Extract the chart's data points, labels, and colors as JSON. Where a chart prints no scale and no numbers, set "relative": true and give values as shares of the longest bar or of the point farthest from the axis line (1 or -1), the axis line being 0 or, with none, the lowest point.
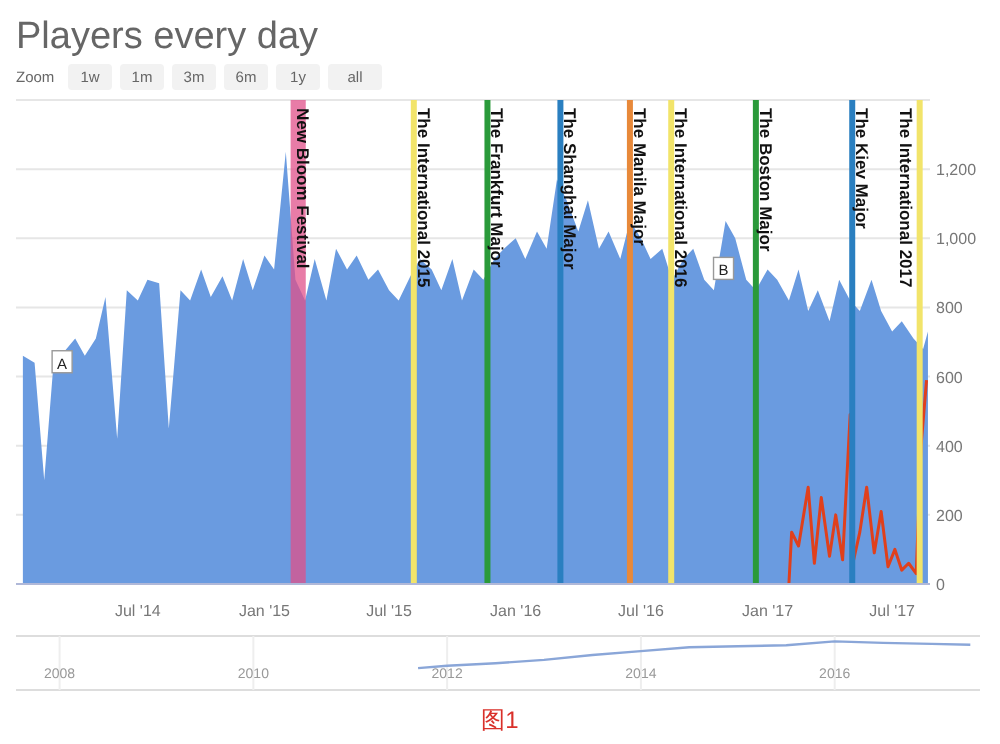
{
  "chart_data": [
    {
      "type": "area",
      "title": "Players every day",
      "annotations": [
        "Zoom",
        "1w",
        "1m",
        "3m",
        "6m",
        "1y",
        "all",
        {
          "text": "A",
          "x": "2014-03-13",
          "y": 640
        },
        {
          "text": "B",
          "x": "2016-10-29",
          "y": 910
        },
        "图1"
      ],
      "x": [
        "2014-01-15",
        "2014-02-01",
        "2014-02-15",
        "2014-03-01",
        "2014-03-15",
        "2014-04-01",
        "2014-04-15",
        "2014-05-01",
        "2014-05-15",
        "2014-06-01",
        "2014-06-15",
        "2014-07-01",
        "2014-07-15",
        "2014-08-01",
        "2014-08-15",
        "2014-09-01",
        "2014-09-15",
        "2014-10-01",
        "2014-10-15",
        "2014-11-01",
        "2014-11-15",
        "2014-12-01",
        "2014-12-15",
        "2015-01-01",
        "2015-01-15",
        "2015-02-01",
        "2015-02-15",
        "2015-03-01",
        "2015-03-15",
        "2015-04-01",
        "2015-04-15",
        "2015-05-01",
        "2015-05-15",
        "2015-06-01",
        "2015-06-15",
        "2015-07-01",
        "2015-07-15",
        "2015-08-01",
        "2015-08-15",
        "2015-09-01",
        "2015-09-15",
        "2015-10-01",
        "2015-10-15",
        "2015-11-01",
        "2015-11-15",
        "2015-12-01",
        "2015-12-15",
        "2016-01-01",
        "2016-01-15",
        "2016-02-01",
        "2016-02-15",
        "2016-03-01",
        "2016-03-15",
        "2016-04-01",
        "2016-04-15",
        "2016-05-01",
        "2016-05-15",
        "2016-06-01",
        "2016-06-15",
        "2016-07-01",
        "2016-07-15",
        "2016-08-01",
        "2016-08-15",
        "2016-09-01",
        "2016-09-15",
        "2016-10-01",
        "2016-10-15",
        "2016-11-01",
        "2016-11-15",
        "2016-12-01",
        "2016-12-15",
        "2017-01-01",
        "2017-01-15",
        "2017-02-01",
        "2017-02-15",
        "2017-03-01",
        "2017-03-15",
        "2017-04-01",
        "2017-04-15",
        "2017-05-01",
        "2017-05-15",
        "2017-06-01",
        "2017-06-15",
        "2017-07-01",
        "2017-07-15",
        "2017-08-01",
        "2017-08-15",
        "2017-08-22"
      ],
      "series": [
        {
          "color": "#6a9be0",
          "values": [
            660,
            640,
            300,
            650,
            670,
            710,
            660,
            710,
            830,
            420,
            850,
            820,
            880,
            870,
            450,
            850,
            820,
            910,
            830,
            890,
            820,
            940,
            850,
            950,
            910,
            1250,
            880,
            820,
            940,
            820,
            970,
            910,
            950,
            880,
            910,
            850,
            820,
            890,
            940,
            910,
            850,
            940,
            820,
            910,
            880,
            940,
            970,
            1000,
            940,
            1020,
            970,
            1170,
            1110,
            1020,
            1110,
            970,
            1020,
            940,
            1050,
            1000,
            940,
            970,
            880,
            940,
            970,
            880,
            850,
            1050,
            1000,
            880,
            850,
            910,
            880,
            820,
            910,
            790,
            850,
            760,
            880,
            820,
            790,
            880,
            790,
            730,
            760,
            710,
            680,
            730
          ]
        },
        {
          "type": "line",
          "color": "#e0401c",
          "x": [
            "2017-02-01",
            "2017-02-05",
            "2017-02-15",
            "2017-03-01",
            "2017-03-10",
            "2017-03-20",
            "2017-04-01",
            "2017-04-10",
            "2017-04-20",
            "2017-05-01",
            "2017-05-05",
            "2017-05-15",
            "2017-05-25",
            "2017-06-05",
            "2017-06-15",
            "2017-06-25",
            "2017-07-05",
            "2017-07-15",
            "2017-07-25",
            "2017-08-05",
            "2017-08-12",
            "2017-08-20"
          ],
          "values": [
            0,
            150,
            110,
            280,
            60,
            250,
            80,
            200,
            70,
            490,
            60,
            150,
            280,
            90,
            210,
            50,
            100,
            40,
            60,
            30,
            400,
            590
          ]
        }
      ],
      "xlim": [
        "2014-01-05",
        "2017-08-25"
      ],
      "xticks": [
        {
          "value": "2014-07-01",
          "label": "Jul '14"
        },
        {
          "value": "2015-01-01",
          "label": "Jan '15"
        },
        {
          "value": "2015-07-01",
          "label": "Jul '15"
        },
        {
          "value": "2016-01-01",
          "label": "Jan '16"
        },
        {
          "value": "2016-07-01",
          "label": "Jul '16"
        },
        {
          "value": "2017-01-01",
          "label": "Jan '17"
        },
        {
          "value": "2017-07-01",
          "label": "Jul '17"
        }
      ],
      "ylim": [
        0,
        1400
      ],
      "yticks": [
        {
          "value": 0,
          "label": "0"
        },
        {
          "value": 200,
          "label": "200"
        },
        {
          "value": 400,
          "label": "400"
        },
        {
          "value": 600,
          "label": "600"
        },
        {
          "value": 800,
          "label": "800"
        },
        {
          "value": 1000,
          "label": "1,000"
        },
        {
          "value": 1200,
          "label": "1,200"
        },
        {
          "value": 1400,
          "label": null
        }
      ],
      "grid": "y",
      "bands": [
        {
          "axis": "x",
          "from": "2015-02-08",
          "to": "2015-03-02",
          "label": "New Bloom Festival",
          "color": "#e0508a"
        }
      ],
      "ref_lines": [
        {
          "axis": "x",
          "value": "2015-08-06",
          "label": "The International 2015",
          "color": "#f2e46a"
        },
        {
          "axis": "x",
          "value": "2015-11-21",
          "label": "The Frankfurt Major",
          "color": "#2a9a3a"
        },
        {
          "axis": "x",
          "value": "2016-03-06",
          "label": "The Shanghai Major",
          "color": "#2a7fc0"
        },
        {
          "axis": "x",
          "value": "2016-06-15",
          "label": "The Manila Major",
          "color": "#e8893a"
        },
        {
          "axis": "x",
          "value": "2016-08-14",
          "label": "The International 2016",
          "color": "#f2e46a"
        },
        {
          "axis": "x",
          "value": "2016-12-15",
          "label": "The Boston Major",
          "color": "#2a9a3a"
        },
        {
          "axis": "x",
          "value": "2017-05-04",
          "label": "The Kiev Major",
          "color": "#2a7fc0"
        },
        {
          "axis": "x",
          "value": "2017-08-10",
          "label": "The International 2017",
          "color": "#f2e46a"
        }
      ]
    },
    {
      "type": "line",
      "relative": true,
      "tick_labels": "x",
      "grid": "x",
      "color": "#8aa6d8",
      "x": [
        2011.7,
        2012.0,
        2012.5,
        2013.0,
        2013.5,
        2014.0,
        2014.5,
        2015.0,
        2015.5,
        2016.0,
        2016.5,
        2017.0,
        2017.4
      ],
      "values": [
        0.45,
        0.5,
        0.55,
        0.62,
        0.72,
        0.8,
        0.88,
        0.9,
        0.92,
        1,
        0.97,
        0.95,
        0.93
      ],
      "xlim": [
        2007.55,
        2017.5
      ],
      "xticks": [
        2008,
        2010,
        2012,
        2014,
        2016
      ]
    }
  ]
}
